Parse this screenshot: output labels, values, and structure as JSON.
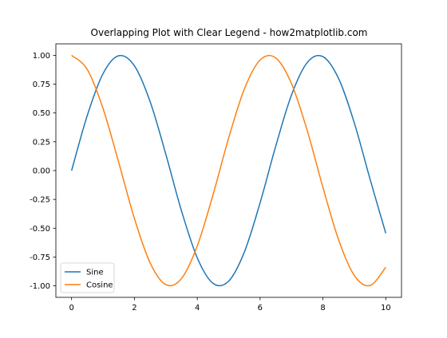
{
  "chart_data": {
    "type": "line",
    "title": "Overlapping Plot with Clear Legend - how2matplotlib.com",
    "xlabel": "",
    "ylabel": "",
    "xlim": [
      -0.5,
      10.5
    ],
    "ylim": [
      -1.1,
      1.1
    ],
    "x_ticks": [
      0,
      2,
      4,
      6,
      8,
      10
    ],
    "x_tick_labels": [
      "0",
      "2",
      "4",
      "6",
      "8",
      "10"
    ],
    "y_ticks": [
      1.0,
      0.75,
      0.5,
      0.25,
      0.0,
      -0.25,
      -0.5,
      -0.75,
      -1.0
    ],
    "y_tick_labels": [
      "1.00",
      "0.75",
      "0.50",
      "0.25",
      "0.00",
      "-0.25",
      "-0.50",
      "-0.75",
      "-1.00"
    ],
    "grid": false,
    "legend_position": "lower-left",
    "x": [
      0.0,
      0.5,
      1.0,
      1.5,
      2.0,
      2.5,
      3.0,
      3.5,
      4.0,
      4.5,
      5.0,
      5.5,
      6.0,
      6.5,
      7.0,
      7.5,
      8.0,
      8.5,
      9.0,
      9.5,
      10.0
    ],
    "series": [
      {
        "name": "Sine",
        "color": "#1f77b4",
        "values": [
          0.0,
          0.479,
          0.841,
          0.997,
          0.909,
          0.598,
          0.141,
          -0.351,
          -0.757,
          -0.978,
          -0.959,
          -0.706,
          -0.279,
          0.215,
          0.657,
          0.938,
          0.989,
          0.798,
          0.412,
          -0.075,
          -0.544
        ]
      },
      {
        "name": "Cosine",
        "color": "#ff7f0e",
        "values": [
          1.0,
          0.878,
          0.54,
          0.071,
          -0.416,
          -0.801,
          -0.99,
          -0.936,
          -0.654,
          -0.211,
          0.284,
          0.709,
          0.96,
          0.977,
          0.754,
          0.347,
          -0.146,
          -0.602,
          -0.911,
          -0.997,
          -0.839
        ]
      }
    ]
  }
}
